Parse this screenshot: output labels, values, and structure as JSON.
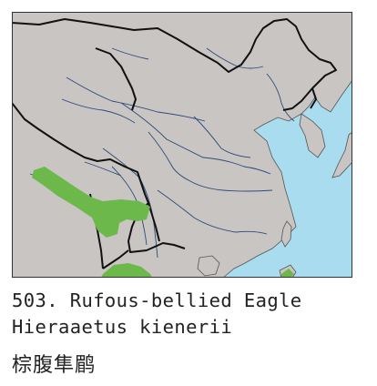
{
  "map": {
    "colors": {
      "land": "#c8c5c2",
      "sea": "#a9dcef",
      "river": "#2f4a7a",
      "border": "#111111",
      "range": "#6db84a",
      "frame": "#333333"
    }
  },
  "caption": {
    "number_and_common_name": "503. Rufous-bellied Eagle",
    "scientific_name": "Hieraaetus kienerii",
    "chinese_name": "棕腹隼鹛"
  }
}
